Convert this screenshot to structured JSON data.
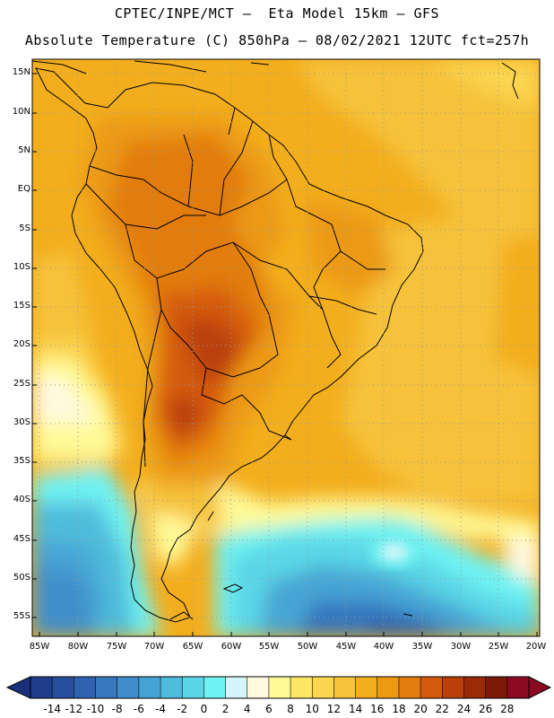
{
  "title": {
    "line1": "CPTEC/INPE/MCT –  Eta Model 15km – GFS",
    "line2": "Absolute Temperature (C) 850hPa – 08/02/2021 12UTC fct=257h"
  },
  "map": {
    "projection": "lat-lon",
    "lon_range": [
      -85,
      -20
    ],
    "lat_range": [
      -58,
      17
    ],
    "lat_labels": [
      "15N",
      "10N",
      "5N",
      "EQ",
      "5S",
      "10S",
      "15S",
      "20S",
      "25S",
      "30S",
      "35S",
      "40S",
      "45S",
      "50S",
      "55S"
    ],
    "lon_labels": [
      "85W",
      "80W",
      "75W",
      "70W",
      "65W",
      "60W",
      "55W",
      "50W",
      "45W",
      "40W",
      "35W",
      "30W",
      "25W",
      "20W"
    ]
  },
  "colorbar": {
    "labels": [
      "-14",
      "-12",
      "-10",
      "-8",
      "-6",
      "-4",
      "-2",
      "0",
      "2",
      "4",
      "6",
      "8",
      "10",
      "12",
      "14",
      "16",
      "18",
      "20",
      "22",
      "24",
      "26",
      "28"
    ],
    "colors": [
      "#1f3d8a",
      "#274f9e",
      "#2f62b0",
      "#3677be",
      "#3f8ecb",
      "#46a4d4",
      "#4fbcdc",
      "#5ad6e6",
      "#6ff2f2",
      "#d4f6fb",
      "#fff9e0",
      "#fffa98",
      "#fde866",
      "#fbd64f",
      "#f6c23a",
      "#f3ae1d",
      "#ec9a12",
      "#e27b10",
      "#d45a0c",
      "#b9400a",
      "#9b2b08",
      "#7a1a07",
      "#8b0a22"
    ],
    "over_color": "#8b0a22",
    "under_color": "#1c2f7a"
  }
}
